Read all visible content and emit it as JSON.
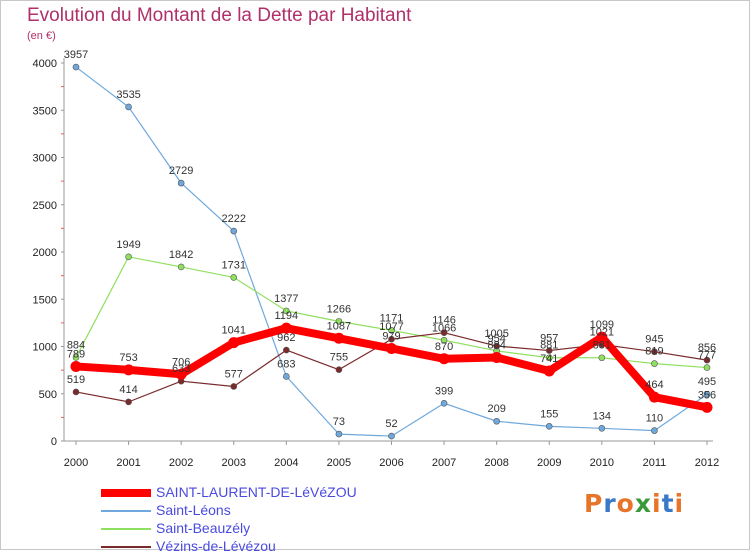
{
  "title": "Evolution du Montant de la Dette par Habitant",
  "subtitle": "(en €)",
  "logo": {
    "text": "Proxiti",
    "colors": [
      "#e8742a",
      "#3a78c8",
      "#e8742a",
      "#3a9a3a",
      "#e8742a",
      "#3a78c8",
      "#e8742a"
    ]
  },
  "chart_data": {
    "type": "line",
    "title": "Evolution du Montant de la Dette par Habitant",
    "ylabel": "(en €)",
    "xlabel": "",
    "x": [
      "2000",
      "2001",
      "2002",
      "2003",
      "2004",
      "2005",
      "2006",
      "2007",
      "2008",
      "2009",
      "2010",
      "2011",
      "2012"
    ],
    "ylim": [
      0,
      4000
    ],
    "yticks": [
      "0",
      "500",
      "1000",
      "1500",
      "2000",
      "2500",
      "3000",
      "3500",
      "4000"
    ],
    "grid": false,
    "legend": "bottom-left",
    "series": [
      {
        "name": "SAINT-LAURENT-DE-LéVéZOU",
        "color": "#ff0000",
        "width": 8,
        "values": [
          789,
          753,
          706,
          1041,
          1194,
          1087,
          979,
          870,
          884,
          741,
          1099,
          464,
          356
        ],
        "labels": [
          "789",
          "753",
          "706",
          "1041",
          "1194",
          "1087",
          "979",
          "870",
          "884",
          "741",
          "1099",
          "464",
          "356"
        ]
      },
      {
        "name": "Saint-Léons",
        "color": "#6fa8dc",
        "width": 1.2,
        "values": [
          3957,
          3535,
          2729,
          2222,
          683,
          73,
          52,
          399,
          209,
          155,
          134,
          110,
          495
        ],
        "labels": [
          "3957",
          "3535",
          "2729",
          "2222",
          "683",
          "73",
          "52",
          "399",
          "209",
          "155",
          "134",
          "110",
          "495"
        ]
      },
      {
        "name": "Saint-Beauzély",
        "color": "#90e060",
        "width": 1.2,
        "values": [
          884,
          1949,
          1842,
          1731,
          1377,
          1266,
          1171,
          1066,
          954,
          881,
          881,
          819,
          777
        ],
        "labels": [
          "884",
          "1949",
          "1842",
          "1731",
          "1377",
          "1266",
          "1171",
          "1066",
          "954",
          "881",
          "881",
          "819",
          "777"
        ]
      },
      {
        "name": "Vézins-de-Lévézou",
        "color": "#7a2a2a",
        "width": 1.2,
        "values": [
          519,
          414,
          633,
          577,
          962,
          755,
          1077,
          1146,
          1005,
          957,
          1021,
          945,
          856
        ],
        "labels": [
          "519",
          "414",
          "633",
          "577",
          "962",
          "755",
          "1077",
          "1146",
          "1005",
          "957",
          "1021",
          "945",
          "856"
        ]
      }
    ]
  }
}
